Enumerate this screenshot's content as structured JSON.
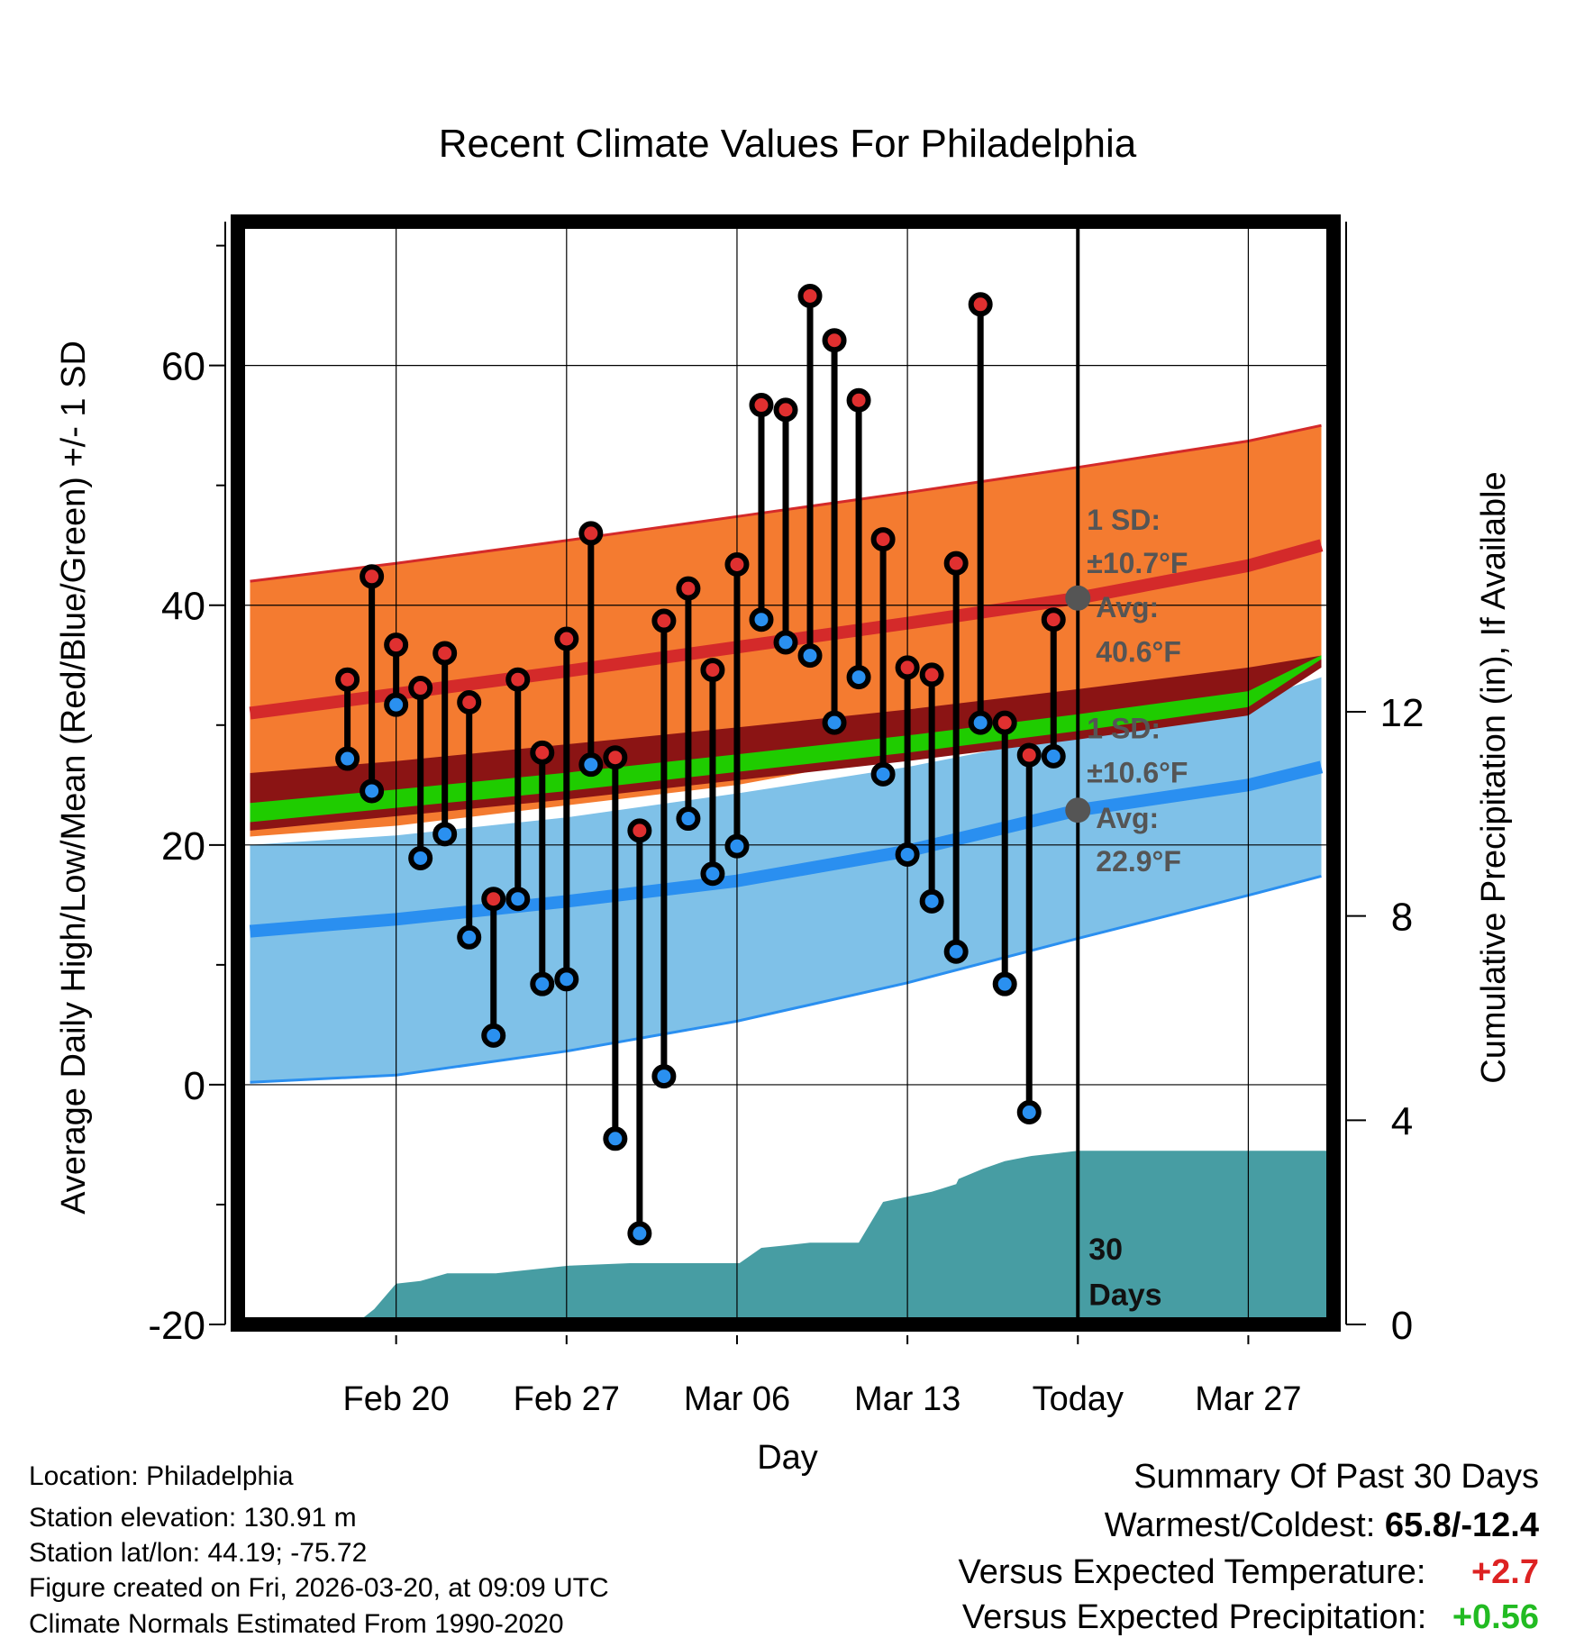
{
  "chart_data": {
    "type": "line",
    "title": "Recent Climate Values For Philadelphia",
    "xlabel": "Day",
    "ylabel_left": "Average Daily High/Low/Mean (Red/Blue/Green) +/- 1 SD",
    "ylabel_right": "Cumulative Precipitation (in), If Available",
    "ylim_left": [
      -20,
      72
    ],
    "ylim_right": [
      0,
      21.6
    ],
    "xlim_days": [
      -34.5,
      10.5
    ],
    "x_ticks": [
      {
        "day": -28,
        "label": "Feb 20"
      },
      {
        "day": -21,
        "label": "Feb 27"
      },
      {
        "day": -14,
        "label": "Mar 06"
      },
      {
        "day": -7,
        "label": "Mar 13"
      },
      {
        "day": 0,
        "label": "Today"
      },
      {
        "day": 7,
        "label": "Mar 27"
      }
    ],
    "y_ticks_left": [
      -20,
      0,
      20,
      40,
      60
    ],
    "y_ticks_right": [
      0,
      4,
      8,
      12
    ],
    "normals": {
      "days": [
        -34,
        -28,
        -21,
        -14,
        -7,
        0,
        7,
        10
      ],
      "high_upper": [
        42.0,
        43.5,
        45.4,
        47.4,
        49.4,
        51.5,
        53.7,
        55.0
      ],
      "high_mean": [
        31.0,
        32.6,
        34.5,
        36.5,
        38.5,
        40.6,
        43.3,
        45.0
      ],
      "high_lower": [
        20.7,
        21.6,
        23.3,
        25.0,
        27.6,
        30.3,
        33.8,
        35.5
      ],
      "mean_upper": [
        26.0,
        27.0,
        28.4,
        29.8,
        31.3,
        33.0,
        34.8,
        35.8
      ],
      "mean_lower": [
        21.2,
        22.4,
        23.8,
        25.4,
        27.0,
        28.8,
        30.8,
        34.8
      ],
      "low_upper": [
        20.0,
        20.8,
        22.3,
        24.3,
        26.5,
        29.3,
        32.0,
        34.0
      ],
      "low_mean": [
        12.8,
        13.8,
        15.3,
        17.0,
        19.5,
        22.9,
        25.0,
        26.5
      ],
      "low_lower": [
        0.2,
        0.8,
        2.8,
        5.3,
        8.5,
        12.2,
        15.8,
        17.4
      ]
    },
    "annotations": {
      "high_sd": "1 SD:",
      "high_sd_value": "±10.7°F",
      "high_avg": "Avg:",
      "high_avg_value": "40.6°F",
      "high_avg_temp": 40.6,
      "low_sd": "1 SD:",
      "low_sd_value": "±10.6°F",
      "low_avg": "Avg:",
      "low_avg_value": "22.9°F",
      "low_avg_temp": 22.9,
      "days_line1": "30",
      "days_line2": "Days"
    },
    "daily": {
      "days": [
        -30,
        -29,
        -28,
        -27,
        -26,
        -25,
        -24,
        -23,
        -22,
        -21,
        -20,
        -19,
        -18,
        -17,
        -16,
        -15,
        -14,
        -13,
        -12,
        -11,
        -10,
        -9,
        -8,
        -7,
        -6,
        -5,
        -4,
        -3,
        -2,
        -1
      ],
      "highs": [
        33.8,
        42.4,
        36.7,
        33.1,
        36.0,
        31.9,
        15.5,
        33.8,
        27.7,
        37.2,
        46.0,
        27.3,
        21.2,
        38.7,
        41.4,
        34.6,
        43.4,
        56.7,
        56.3,
        65.8,
        62.1,
        57.1,
        45.5,
        34.8,
        34.2,
        43.5,
        65.1,
        30.2,
        27.5,
        38.8
      ],
      "lows": [
        27.2,
        24.5,
        31.7,
        18.9,
        20.9,
        12.3,
        4.1,
        15.5,
        8.4,
        8.8,
        26.7,
        -4.5,
        -12.4,
        0.7,
        22.2,
        17.6,
        19.9,
        38.8,
        36.9,
        35.8,
        30.2,
        34.0,
        25.9,
        19.2,
        15.3,
        11.1,
        30.2,
        8.4,
        -2.3,
        27.4
      ]
    },
    "precip": {
      "days": [
        -35,
        -29.7,
        -28.9,
        -28,
        -27,
        -25.9,
        -24.9,
        -23.9,
        -20.9,
        -18.4,
        -13.9,
        -13,
        -12,
        -11,
        -10,
        -9,
        -8,
        -7,
        -6,
        -5,
        -4.9,
        -3.9,
        -3,
        -1.9,
        0,
        10.5
      ],
      "values": [
        0,
        0,
        0.3,
        0.8,
        0.85,
        1.0,
        1.0,
        1.0,
        1.15,
        1.2,
        1.2,
        1.5,
        1.55,
        1.6,
        1.6,
        1.6,
        2.4,
        2.5,
        2.6,
        2.75,
        2.85,
        3.05,
        3.2,
        3.3,
        3.4,
        3.4
      ]
    },
    "grid": true
  },
  "info": {
    "location": "Location: Philadelphia",
    "elevation": "Station elevation: 130.91 m",
    "latlon": "Station lat/lon: 44.19; -75.72",
    "created": "Figure created on Fri, 2026-03-20, at 09:09 UTC",
    "normals": "Climate Normals Estimated From 1990-2020"
  },
  "summary": {
    "heading": "Summary Of Past 30 Days",
    "warmest_label": "Warmest/Coldest:",
    "warmest_value": "65.8/-12.4",
    "temp_label": "Versus Expected Temperature:",
    "temp_value": "+2.7",
    "precip_label": "Versus Expected Precipitation:",
    "precip_value": "+0.56"
  },
  "colors": {
    "high_band": "#f47b30",
    "high_mean": "#d42a2a",
    "low_band": "#7fc1e8",
    "low_mean": "#2a8ff0",
    "mean_band_dark": "#8b1414",
    "mean_band_green": "#1fcc00",
    "precip": "#479da3",
    "high_dot": "#e03030",
    "low_dot": "#2a90f0",
    "annotation": "#555555",
    "temp_positive": "#dd2222",
    "precip_positive": "#22bb22"
  }
}
